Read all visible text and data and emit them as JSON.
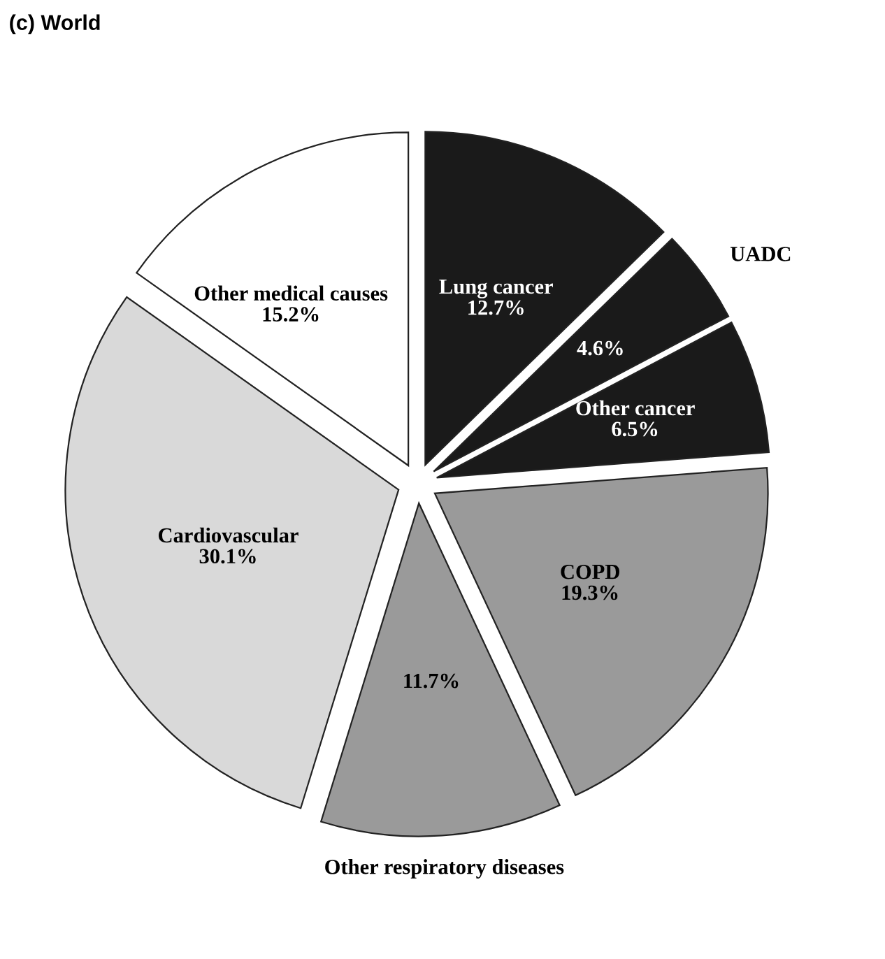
{
  "chart_data": {
    "type": "pie",
    "title": "(c) World",
    "categories": [
      "Lung cancer",
      "UADC",
      "Other cancer",
      "COPD",
      "Other respiratory diseases",
      "Cardiovascular",
      "Other medical causes"
    ],
    "values": [
      12.7,
      4.6,
      6.5,
      19.3,
      11.7,
      30.1,
      15.2
    ],
    "colors": [
      "#1a1a1a",
      "#1a1a1a",
      "#1a1a1a",
      "#9a9a9a",
      "#9a9a9a",
      "#d9d9d9",
      "#ffffff"
    ],
    "value_labels": [
      "12.7%",
      "4.6%",
      "6.5%",
      "19.3%",
      "11.7%",
      "30.1%",
      "15.2%"
    ]
  }
}
